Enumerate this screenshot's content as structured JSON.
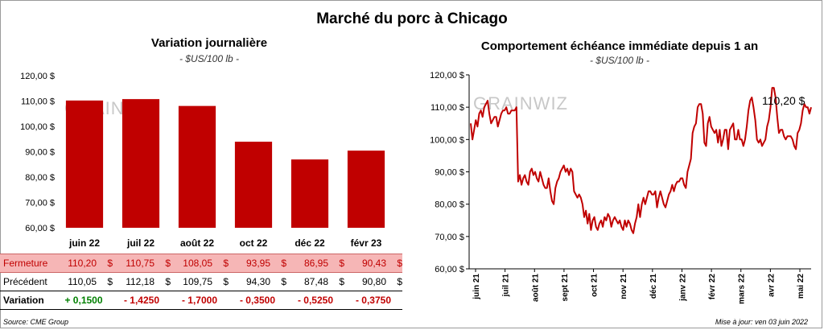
{
  "title": "Marché du porc à Chicago",
  "chart_data": [
    {
      "type": "bar",
      "title": "Variation  journalière",
      "subtitle": "- $US/100 lb -",
      "categories": [
        "juin 22",
        "juil 22",
        "août 22",
        "oct 22",
        "déc 22",
        "févr 23"
      ],
      "values": [
        110.2,
        110.75,
        108.05,
        93.95,
        86.95,
        90.43
      ],
      "ylim": [
        60,
        120
      ],
      "yticks": [
        "60,00 $",
        "70,00 $",
        "80,00 $",
        "90,00 $",
        "100,00 $",
        "110,00 $",
        "120,00 $"
      ],
      "color": "#c00000",
      "watermark": "GRAINWIZ"
    },
    {
      "type": "line",
      "title": "Comportement  échéance immédiate depuis 1 an",
      "subtitle": "- $US/100 lb -",
      "ylim": [
        60,
        120
      ],
      "yticks": [
        "60,00 $",
        "70,00 $",
        "80,00 $",
        "90,00 $",
        "100,00 $",
        "110,00 $",
        "120,00 $"
      ],
      "xticks": [
        "juin 21",
        "juil 21",
        "août 21",
        "sept 21",
        "oct 21",
        "nov 21",
        "déc 21",
        "janv 22",
        "févr 22",
        "mars 22",
        "avr 22",
        "mai 22"
      ],
      "last_label": "110,20 $",
      "color": "#c00000",
      "watermark": "GRAINWIZ",
      "series": [
        {
          "name": "Échéance immédiate",
          "values": [
            105,
            100,
            103,
            106,
            104,
            108,
            109,
            107,
            110,
            111,
            112,
            108,
            105,
            106,
            107,
            107,
            104,
            106,
            108,
            109,
            109,
            110,
            108,
            108,
            109,
            109,
            109,
            110,
            87,
            89,
            86,
            88,
            89,
            87,
            86,
            90,
            91,
            89,
            90,
            88,
            87,
            90,
            88,
            86,
            85,
            85,
            88,
            84,
            81,
            80,
            85,
            87,
            88,
            90,
            91,
            92,
            90,
            91,
            89,
            91,
            90,
            84,
            83,
            82,
            83,
            82,
            80,
            76,
            78,
            74,
            77,
            72,
            75,
            76,
            73,
            72,
            74,
            75,
            73,
            76,
            75,
            77,
            76,
            73,
            75,
            76,
            75,
            74,
            75,
            73,
            72,
            75,
            73,
            75,
            74,
            72,
            71,
            74,
            76,
            80,
            76,
            80,
            82,
            80,
            82,
            84,
            84,
            83,
            83,
            84,
            79,
            82,
            84,
            82,
            80,
            79,
            81,
            83,
            84,
            86,
            84,
            86,
            87,
            87,
            88,
            88,
            86,
            85,
            90,
            92,
            94,
            102,
            104,
            105,
            110,
            111,
            111,
            108,
            99,
            98,
            105,
            107,
            104,
            103,
            102,
            103,
            99,
            103,
            98,
            100,
            103,
            103,
            97,
            103,
            104,
            105,
            100,
            100,
            103,
            100,
            100,
            98,
            100,
            104,
            109,
            112,
            113,
            110,
            106,
            100,
            99,
            100,
            98,
            99,
            100,
            104,
            106,
            110,
            116,
            116,
            113,
            107,
            102,
            103,
            103,
            101,
            100,
            101,
            101,
            101,
            100,
            98,
            97,
            102,
            103,
            105,
            109,
            111,
            110,
            110,
            108,
            110
          ]
        }
      ]
    }
  ],
  "table": {
    "rows": [
      {
        "label": "Fermeture",
        "cells": [
          [
            "110,20",
            "$"
          ],
          [
            "110,75",
            "$"
          ],
          [
            "108,05",
            "$"
          ],
          [
            "93,95",
            "$"
          ],
          [
            "86,95",
            "$"
          ],
          [
            "90,43",
            "$"
          ]
        ]
      },
      {
        "label": "Précédent",
        "cells": [
          [
            "110,05",
            "$"
          ],
          [
            "112,18",
            "$"
          ],
          [
            "109,75",
            "$"
          ],
          [
            "94,30",
            "$"
          ],
          [
            "87,48",
            "$"
          ],
          [
            "90,80",
            "$"
          ]
        ]
      },
      {
        "label": "Variation",
        "cells": [
          "+ 0,1500",
          "- 1,4250",
          "- 1,7000",
          "- 0,3500",
          "- 0,5250",
          "- 0,3750"
        ]
      }
    ]
  },
  "colors": {
    "accent": "#c00000",
    "positive": "#008000",
    "close_row_bg": "#f6b6b6"
  },
  "source": "Source: CME Group",
  "updated": "Mise à jour: ven 03 juin 2022"
}
